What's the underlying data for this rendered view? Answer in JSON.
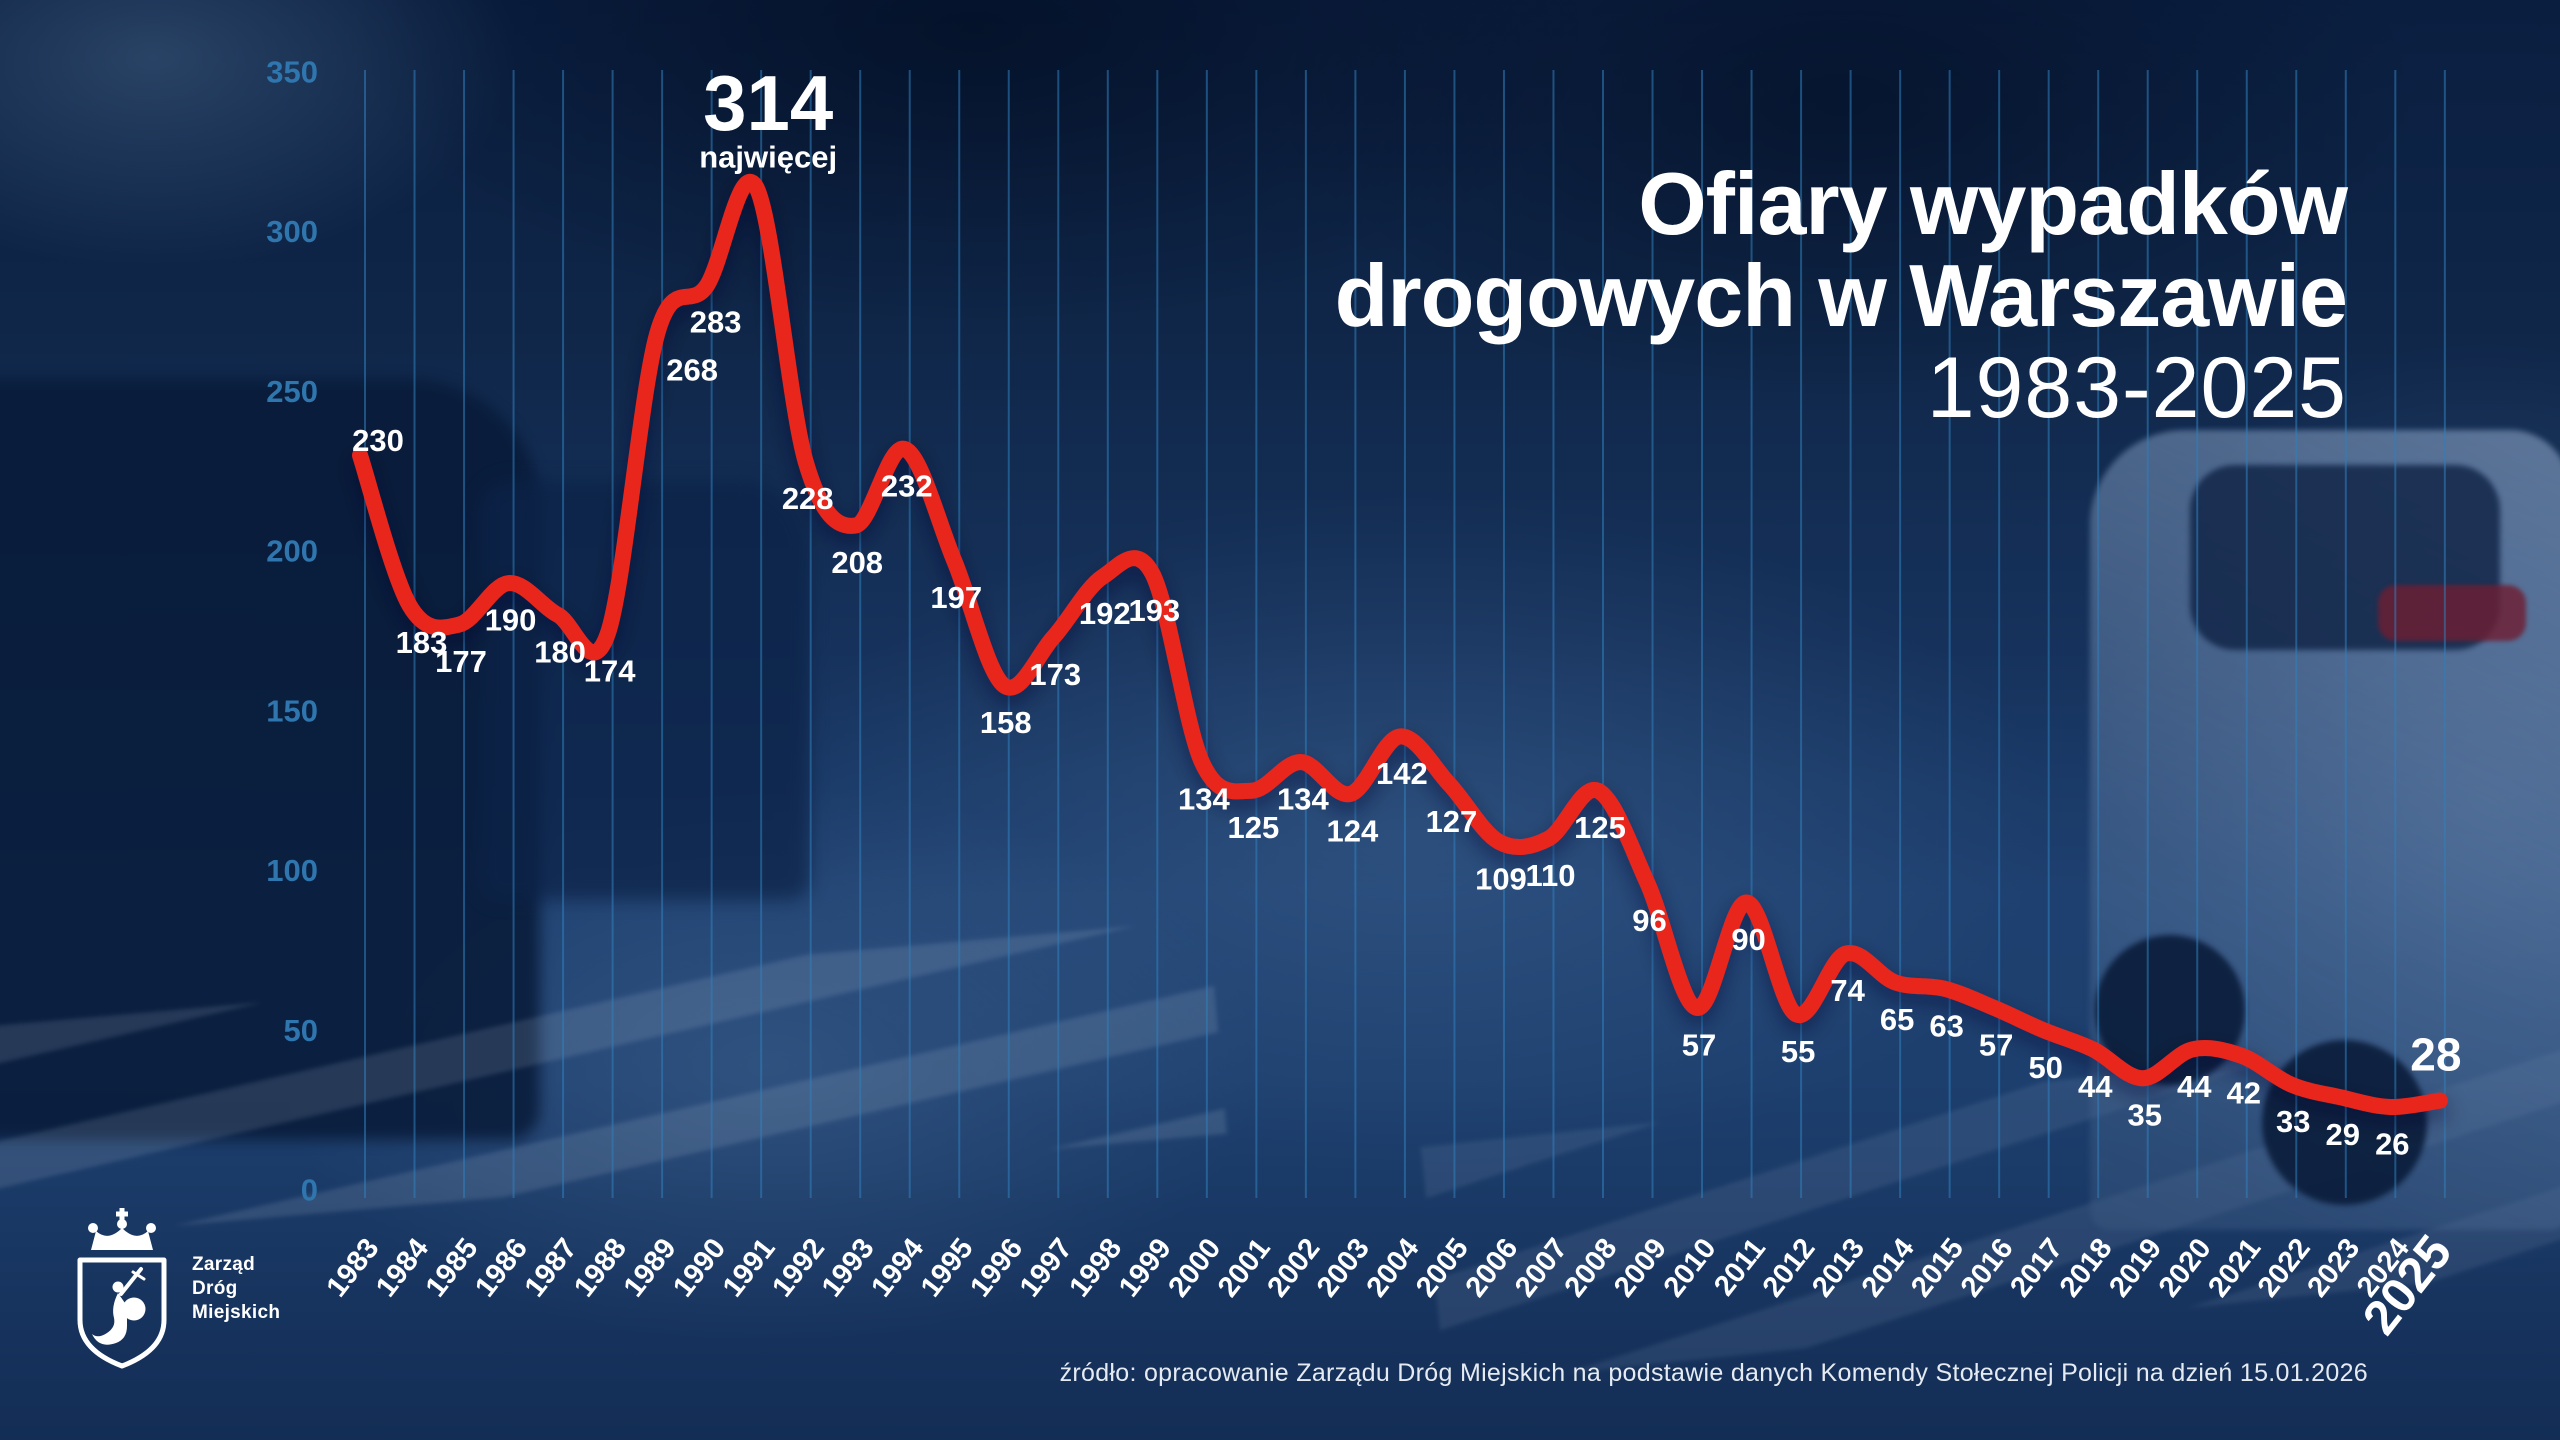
{
  "title": {
    "line1": "Ofiary wypadków",
    "line2": "drogowych w Warszawie",
    "line3": "1983-2025"
  },
  "source": "źródło: opracowanie Zarządu Dróg Miejskich na podstawie danych Komendy Stołecznej Policji na dzień 15.01.2026",
  "logo": {
    "name_line1": "Zarząd",
    "name_line2": "Dróg",
    "name_line3": "Miejskich"
  },
  "chart_data": {
    "type": "line",
    "title": "Ofiary wypadków drogowych w Warszawie 1983-2025",
    "x": [
      1983,
      1984,
      1985,
      1986,
      1987,
      1988,
      1989,
      1990,
      1991,
      1992,
      1993,
      1994,
      1995,
      1996,
      1997,
      1998,
      1999,
      2000,
      2001,
      2002,
      2003,
      2004,
      2005,
      2006,
      2007,
      2008,
      2009,
      2010,
      2011,
      2012,
      2013,
      2014,
      2015,
      2016,
      2017,
      2018,
      2019,
      2020,
      2021,
      2022,
      2023,
      2024,
      2025
    ],
    "values": [
      230,
      183,
      177,
      190,
      180,
      174,
      268,
      283,
      314,
      228,
      208,
      232,
      197,
      158,
      173,
      192,
      193,
      134,
      125,
      134,
      124,
      142,
      127,
      109,
      110,
      125,
      96,
      57,
      90,
      55,
      74,
      65,
      63,
      57,
      50,
      44,
      35,
      44,
      42,
      33,
      29,
      26,
      28
    ],
    "ylim": [
      0,
      350
    ],
    "yticks": [
      0,
      50,
      100,
      150,
      200,
      250,
      300,
      350
    ],
    "grid": "vertical",
    "legend": "none",
    "line_color": "#e8251c",
    "gridline_color": "#2f7fbe",
    "axis_label_color": "#2f76ae",
    "max_annotation": {
      "year": 1991,
      "value": 314,
      "label": "najwięcej"
    },
    "highlight_last": {
      "year": 2025,
      "value": 28
    }
  }
}
